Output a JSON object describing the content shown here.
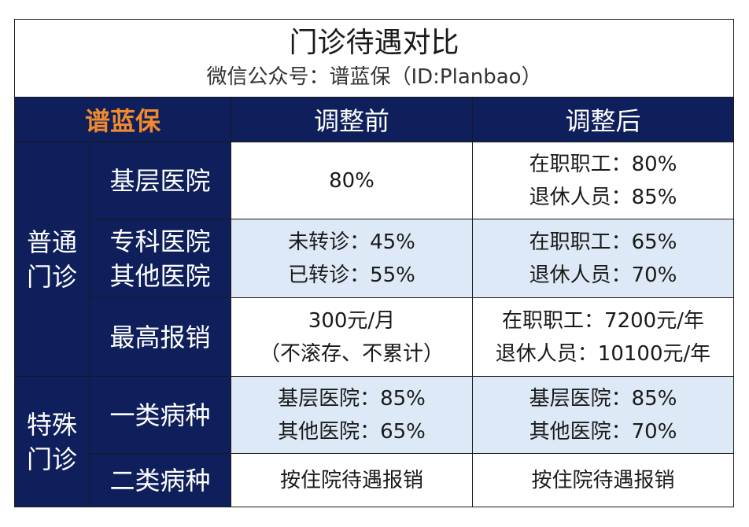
{
  "title": "门诊待遇对比",
  "subtitle": "微信公众号：谱蓝保（ID:Planbao）",
  "header": {
    "brand": "谱蓝保",
    "before": "调整前",
    "after": "调整后"
  },
  "groups": [
    {
      "label_line1": "普通",
      "label_line2": "门诊"
    },
    {
      "label_line1": "特殊",
      "label_line2": "门诊"
    }
  ],
  "rows": [
    {
      "name_line1": "基层医院",
      "before": [
        "80%"
      ],
      "after": [
        "在职职工：80%",
        "退休人员：85%"
      ]
    },
    {
      "name_line1": "专科医院",
      "name_line2": "其他医院",
      "before": [
        "未转诊：45%",
        "已转诊：55%"
      ],
      "after": [
        "在职职工：65%",
        "退休人员：70%"
      ]
    },
    {
      "name_line1": "最高报销",
      "before": [
        "300元/月",
        "（不滚存、不累计）"
      ],
      "after": [
        "在职职工：7200元/年",
        "退休人员：10100元/年"
      ]
    },
    {
      "name_line1": "一类病种",
      "before": [
        "基层医院：85%",
        "其他医院：65%"
      ],
      "after": [
        "基层医院：85%",
        "其他医院：70%"
      ]
    },
    {
      "name_line1": "二类病种",
      "before": [
        "按住院待遇报销"
      ],
      "after": [
        "按住院待遇报销"
      ]
    }
  ]
}
